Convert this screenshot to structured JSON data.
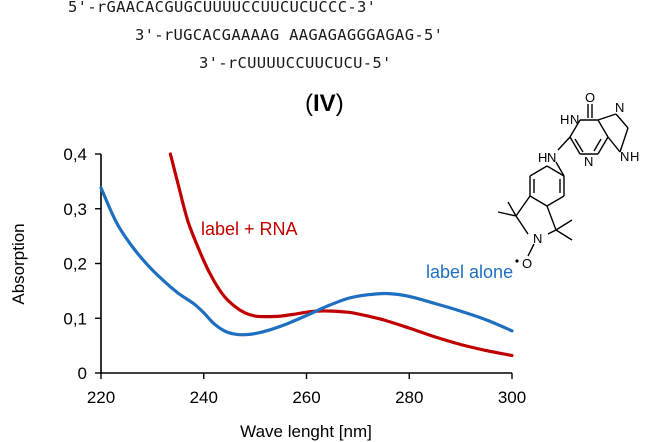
{
  "sequences": [
    "5'-rGAACACGUGCUUUUCCUUCUCUCCC-3'",
    "3'-rUGCACGAAAAG AAGAGAGGGAGAG-5'",
    "3'-rCUUUUCCUUCUCU-5'"
  ],
  "panel": {
    "open": "(",
    "label": "IV",
    "close": ")"
  },
  "colors": {
    "label_rna": "#c00000",
    "label_alone": "#1f6fc1",
    "axis": "#000000"
  },
  "molecule": {
    "icon": "guanine-nitroxide-label-structure-icon",
    "atoms": {
      "o_top": "O",
      "hn1": "H",
      "n1": "N",
      "n7": "N",
      "n9": "N",
      "h9": "H",
      "n3": "N",
      "hn_link": "H",
      "n_link": "N",
      "n_nitroxide": "N",
      "o_radical": "O"
    }
  },
  "chart_data": {
    "type": "line",
    "xlabel": "Wave lenght [nm]",
    "ylabel": "Absorption",
    "xlim": [
      220,
      300
    ],
    "ylim": [
      0,
      0.4
    ],
    "xticks": [
      "220",
      "240",
      "260",
      "280",
      "300"
    ],
    "yticks": [
      "0",
      "0,1",
      "0,2",
      "0,3",
      "0,4"
    ],
    "grid": false,
    "series": [
      {
        "name": "label + RNA",
        "color": "#c00000",
        "x": [
          233.5,
          235,
          237,
          240,
          242,
          244,
          246,
          248,
          250,
          252,
          255,
          258,
          260,
          262,
          265,
          268,
          270,
          272,
          275,
          280,
          285,
          290,
          295,
          300
        ],
        "y": [
          0.4,
          0.345,
          0.275,
          0.205,
          0.168,
          0.14,
          0.122,
          0.11,
          0.104,
          0.103,
          0.104,
          0.108,
          0.111,
          0.113,
          0.113,
          0.111,
          0.108,
          0.104,
          0.097,
          0.082,
          0.066,
          0.052,
          0.041,
          0.032
        ]
      },
      {
        "name": "label alone",
        "color": "#1f6fc1",
        "x": [
          220,
          223,
          226,
          229,
          232,
          235,
          238,
          240,
          242,
          244,
          246,
          248,
          250,
          253,
          256,
          260,
          264,
          268,
          272,
          276,
          280,
          285,
          290,
          295,
          300
        ],
        "y": [
          0.338,
          0.275,
          0.232,
          0.198,
          0.17,
          0.146,
          0.127,
          0.11,
          0.09,
          0.077,
          0.071,
          0.07,
          0.072,
          0.079,
          0.089,
          0.105,
          0.122,
          0.136,
          0.143,
          0.145,
          0.14,
          0.127,
          0.113,
          0.097,
          0.077
        ]
      }
    ]
  }
}
